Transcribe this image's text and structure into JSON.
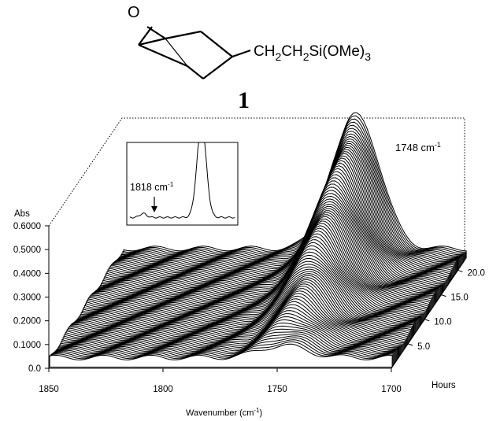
{
  "molecule": {
    "oxygen_label": "O",
    "substituent_label": "CH2CH2Si(OMe)3",
    "substituent_parts": [
      "CH",
      "2",
      "CH",
      "2",
      "Si(OMe)",
      "3"
    ],
    "compound_number": "1"
  },
  "chart_data": {
    "type": "area",
    "subtype": "3d-waterfall",
    "title": "",
    "xlabel": "Wavenumber (cm-1)",
    "xlabel_parts": [
      "Wavenumber (cm",
      "-1",
      ")"
    ],
    "ylabel": "Abs",
    "zlabel": "Hours",
    "x_range": [
      1850,
      1700
    ],
    "x_ticks": [
      "1850",
      "1800",
      "1750",
      "1700"
    ],
    "y_range": [
      0.0,
      0.6
    ],
    "y_ticks": [
      "0.0",
      "0.1000",
      "0.2000",
      "0.3000",
      "0.4000",
      "0.5000",
      "0.6000"
    ],
    "z_range": [
      0,
      22
    ],
    "z_ticks": [
      "5.0",
      "10.0",
      "15.0",
      "20.0"
    ],
    "peak": {
      "wavenumber": 1748,
      "label_parts": [
        "1748 cm",
        "-1"
      ],
      "max_absorbance": 0.57,
      "width_cm1": 10
    },
    "series_count": 90,
    "time_hours_span": [
      0.25,
      22.5
    ],
    "inset": {
      "label_parts": [
        "1818 cm",
        "-1"
      ],
      "annotation_wavenumber": 1818,
      "description": "zoomed spectrum showing small shoulder"
    }
  }
}
